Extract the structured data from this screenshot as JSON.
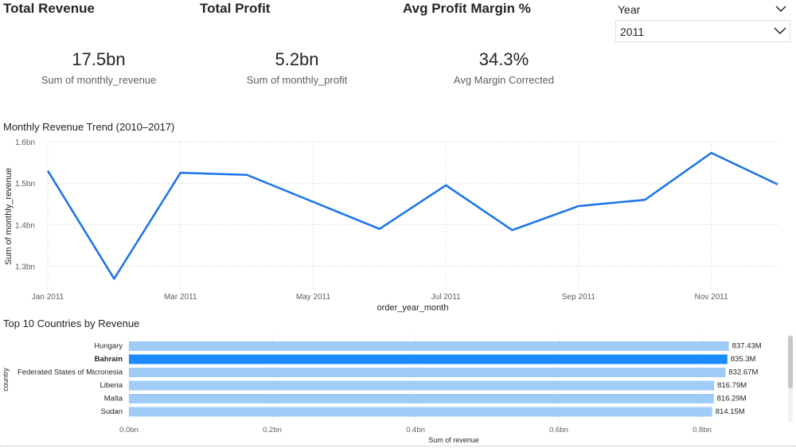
{
  "cards": [
    {
      "title": "Total Revenue",
      "value": "17.5bn",
      "label": "Sum of monthly_revenue"
    },
    {
      "title": "Total Profit",
      "value": "5.2bn",
      "label": "Sum of monthly_profit"
    },
    {
      "title": "Avg Profit Margin %",
      "value": "34.3%",
      "label": "Avg Margin Corrected"
    }
  ],
  "slicer": {
    "header": "Year",
    "selected": "2011"
  },
  "line_visual": {
    "title": "Monthly Revenue Trend (2010–2017)"
  },
  "bar_visual": {
    "title": "Top 10 Countries by Revenue"
  },
  "colors": {
    "line": "#1a73e8",
    "bar_light": "#9fcbf7",
    "bar_highlight": "#1a8cff"
  },
  "chart_data": [
    {
      "type": "line",
      "title": "Monthly Revenue Trend (2010–2017)",
      "xlabel": "order_year_month",
      "ylabel": "Sum of monthly_revenue",
      "x": [
        "Jan 2011",
        "Feb 2011",
        "Mar 2011",
        "Apr 2011",
        "May 2011",
        "Jun 2011",
        "Jul 2011",
        "Aug 2011",
        "Sep 2011",
        "Oct 2011",
        "Nov 2011",
        "Dec 2011"
      ],
      "x_tick_labels": [
        "Jan 2011",
        "Mar 2011",
        "May 2011",
        "Jul 2011",
        "Sep 2011",
        "Nov 2011"
      ],
      "values": [
        1.53,
        1.27,
        1.525,
        1.52,
        1.455,
        1.39,
        1.495,
        1.387,
        1.445,
        1.46,
        1.573,
        1.497
      ],
      "y_tick_labels": [
        "1.6bn",
        "1.5bn",
        "1.4bn",
        "1.3bn"
      ],
      "y_ticks": [
        1.6,
        1.5,
        1.4,
        1.3
      ],
      "ylim": [
        1.24,
        1.6
      ],
      "grid": true
    },
    {
      "type": "bar",
      "orientation": "horizontal",
      "title": "Top 10 Countries by Revenue",
      "xlabel": "Sum of revenue",
      "ylabel": "country",
      "categories": [
        "Hungary",
        "Bahrain",
        "Federated States of Micronesia",
        "Liberia",
        "Malta",
        "Sudan"
      ],
      "values": [
        0.83743,
        0.8353,
        0.83267,
        0.81679,
        0.81629,
        0.81415
      ],
      "value_labels": [
        "837.43M",
        "835.3M",
        "832.67M",
        "816.79M",
        "816.29M",
        "814.15M"
      ],
      "highlighted": "Bahrain",
      "x_tick_labels": [
        "0.0bn",
        "0.2bn",
        "0.4bn",
        "0.6bn",
        "0.8bn"
      ],
      "x_ticks": [
        0,
        0.2,
        0.4,
        0.6,
        0.8
      ],
      "xlim": [
        0,
        0.9
      ],
      "grid": true
    }
  ]
}
